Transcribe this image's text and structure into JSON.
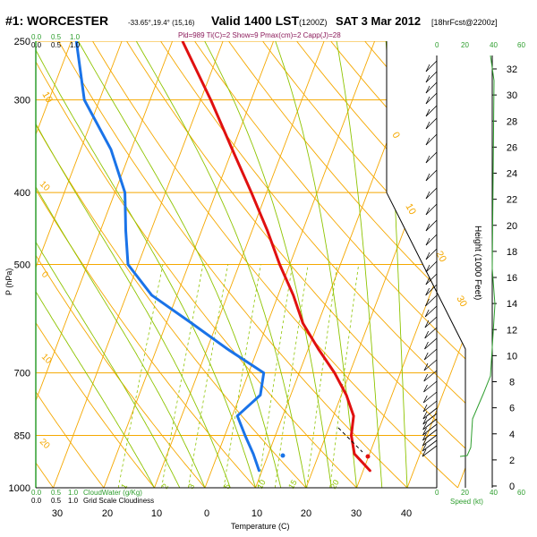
{
  "header": {
    "station": "#1: WORCESTER",
    "coords": "-33.65°,19.4° (15,16)",
    "valid": "Valid 1400 LST",
    "utc": "(1200Z)",
    "date": "SAT 3 Mar 2012",
    "forecast": "[18hrFcst@2200z]",
    "indices": "Pld=989 Ti(C)=2 Show=9 Pmax(cm)=2 Capp(J)=28"
  },
  "cloud_scale": {
    "top_labels": [
      "0.0",
      "0.5",
      "1.0"
    ],
    "top_labels_2": [
      "0.0",
      "0.5",
      "1.0"
    ],
    "bottom_green_labels": [
      "0.0",
      "0.5",
      "1.0"
    ],
    "bottom_green_caption": "CloudWater (g/Kg)",
    "bottom_black_labels": [
      "0.0",
      "0.5",
      "1.0"
    ],
    "bottom_black_caption": "Grid Scale Cloudiness"
  },
  "speed_axis": {
    "labels": [
      "0",
      "20",
      "40",
      "60"
    ],
    "caption": "Speed (kt)"
  },
  "colors": {
    "isobar": "#f5a800",
    "dry_adiabat": "#f5a800",
    "moist_adiabat": "#8ec400",
    "mixing_ratio": "#8ec400",
    "temperature": "#e01010",
    "dewpoint": "#1a73e8",
    "cloud_scale": "#2e9e2e"
  },
  "chart_data": {
    "type": "skew-t",
    "xlabel": "Temperature (C)",
    "ylabel": "P (hPa)",
    "y2label": "Height (1000 Feet)",
    "pressure_ticks": [
      250,
      300,
      400,
      500,
      700,
      850,
      1000
    ],
    "temperature_ticks": [
      30,
      20,
      10,
      0,
      10,
      20,
      30,
      40
    ],
    "height_ticks": [
      0,
      2,
      4,
      6,
      8,
      10,
      12,
      14,
      16,
      18,
      20,
      22,
      24,
      26,
      28,
      30,
      32
    ],
    "isotherm_labels": [
      "10",
      "0",
      "10",
      "20",
      "30"
    ],
    "dry_adiabat_labels": [
      "10",
      "0",
      "10",
      "20",
      "30"
    ],
    "mixing_ratio_labels": [
      "1",
      "2",
      "3",
      "5",
      "10",
      "15",
      "20"
    ],
    "series": [
      {
        "name": "Temperature",
        "values": [
          {
            "p": 950,
            "t": 31.5
          },
          {
            "p": 900,
            "t": 27
          },
          {
            "p": 850,
            "t": 25
          },
          {
            "p": 800,
            "t": 24
          },
          {
            "p": 750,
            "t": 21
          },
          {
            "p": 700,
            "t": 17
          },
          {
            "p": 650,
            "t": 12
          },
          {
            "p": 600,
            "t": 7
          },
          {
            "p": 550,
            "t": 3
          },
          {
            "p": 500,
            "t": -2
          },
          {
            "p": 450,
            "t": -7
          },
          {
            "p": 400,
            "t": -13
          },
          {
            "p": 350,
            "t": -20
          },
          {
            "p": 300,
            "t": -28
          },
          {
            "p": 250,
            "t": -38
          }
        ]
      },
      {
        "name": "Dewpoint",
        "values": [
          {
            "p": 950,
            "t": 9.5
          },
          {
            "p": 900,
            "t": 7
          },
          {
            "p": 850,
            "t": 4
          },
          {
            "p": 800,
            "t": 1
          },
          {
            "p": 750,
            "t": 4
          },
          {
            "p": 700,
            "t": 3
          },
          {
            "p": 650,
            "t": -6
          },
          {
            "p": 600,
            "t": -15
          },
          {
            "p": 550,
            "t": -25
          },
          {
            "p": 500,
            "t": -32
          },
          {
            "p": 450,
            "t": -35
          },
          {
            "p": 400,
            "t": -38
          },
          {
            "p": 350,
            "t": -44
          },
          {
            "p": 300,
            "t": -53
          },
          {
            "p": 250,
            "t": -59
          }
        ]
      }
    ]
  }
}
